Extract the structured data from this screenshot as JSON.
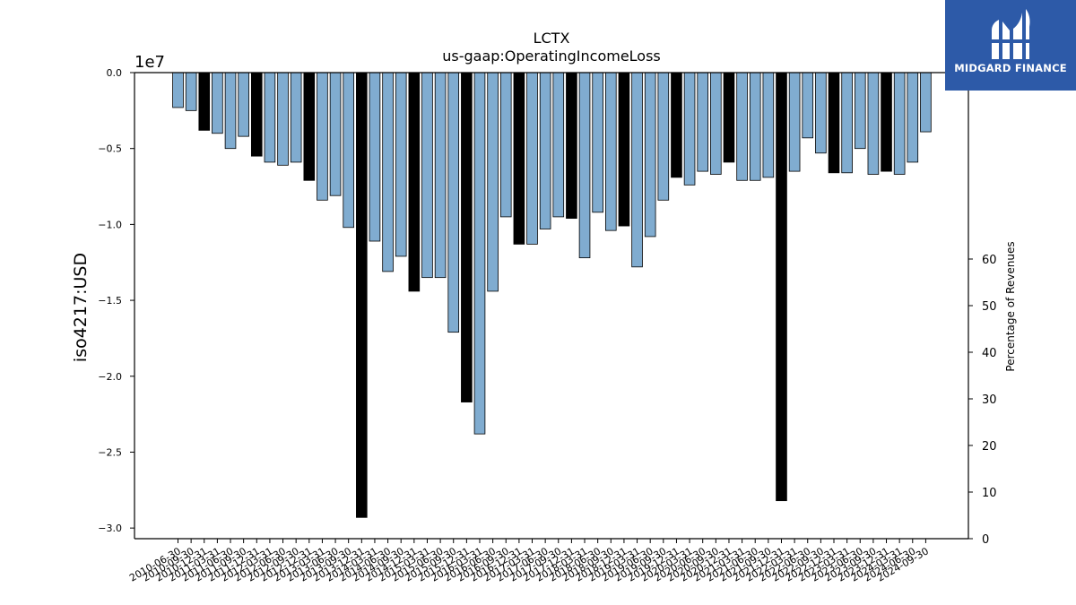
{
  "logo": {
    "name": "MIDGARD FINANCE",
    "icon": "midgard-logo-icon",
    "color": "#2d5aa8"
  },
  "chart_data": {
    "type": "bar",
    "title": "LCTX",
    "subtitle": "us-gaap:OperatingIncomeLoss",
    "ylabel": "iso4217:USD",
    "y_offset_label": "1e7",
    "y2label": "Percentage of Revenues",
    "ylim": [
      -30700000,
      0
    ],
    "y2lim": [
      0,
      100
    ],
    "yticks": [
      "0.0",
      "−0.5",
      "−1.0",
      "−1.5",
      "−2.0",
      "−2.5",
      "−3.0"
    ],
    "y2ticks": [
      "0",
      "10",
      "20",
      "30",
      "40",
      "50",
      "60"
    ],
    "grid": false,
    "colors": {
      "quarter": "#80acd0",
      "annual": "#000000",
      "edge": "#000000"
    },
    "bars": [
      {
        "label": "2010-06-30",
        "value": -2300000,
        "annual": false
      },
      {
        "label": "2010-09-30",
        "value": -2500000,
        "annual": false
      },
      {
        "label": "2010-12-31",
        "value": -3800000,
        "annual": true
      },
      {
        "label": "2011-03-31",
        "value": -4000000,
        "annual": false
      },
      {
        "label": "2011-06-30",
        "value": -5000000,
        "annual": false
      },
      {
        "label": "2011-09-30",
        "value": -4200000,
        "annual": false
      },
      {
        "label": "2011-12-31",
        "value": -5500000,
        "annual": true
      },
      {
        "label": "2012-03-31",
        "value": -5900000,
        "annual": false
      },
      {
        "label": "2012-06-30",
        "value": -6100000,
        "annual": false
      },
      {
        "label": "2012-09-30",
        "value": -5900000,
        "annual": false
      },
      {
        "label": "2012-12-31",
        "value": -7100000,
        "annual": true
      },
      {
        "label": "2013-03-31",
        "value": -8400000,
        "annual": false
      },
      {
        "label": "2013-06-30",
        "value": -8100000,
        "annual": false
      },
      {
        "label": "2013-09-30",
        "value": -10200000,
        "annual": false
      },
      {
        "label": "2013-12-31",
        "value": -29300000,
        "annual": true
      },
      {
        "label": "2014-03-31",
        "value": -11100000,
        "annual": false
      },
      {
        "label": "2014-06-30",
        "value": -13100000,
        "annual": false
      },
      {
        "label": "2014-09-30",
        "value": -12100000,
        "annual": false
      },
      {
        "label": "2014-12-31",
        "value": -14400000,
        "annual": true
      },
      {
        "label": "2015-03-31",
        "value": -13500000,
        "annual": false
      },
      {
        "label": "2015-06-30",
        "value": -13500000,
        "annual": false
      },
      {
        "label": "2015-09-30",
        "value": -17100000,
        "annual": false
      },
      {
        "label": "2015-12-31",
        "value": -21700000,
        "annual": true
      },
      {
        "label": "2016-03-31",
        "value": -23800000,
        "annual": false
      },
      {
        "label": "2016-06-30",
        "value": -14400000,
        "annual": false
      },
      {
        "label": "2016-09-30",
        "value": -9500000,
        "annual": false
      },
      {
        "label": "2016-12-31",
        "value": -11300000,
        "annual": true
      },
      {
        "label": "2017-03-31",
        "value": -11300000,
        "annual": false
      },
      {
        "label": "2017-06-30",
        "value": -10300000,
        "annual": false
      },
      {
        "label": "2017-09-30",
        "value": -9500000,
        "annual": false
      },
      {
        "label": "2017-12-31",
        "value": -9600000,
        "annual": true
      },
      {
        "label": "2018-03-31",
        "value": -12200000,
        "annual": false
      },
      {
        "label": "2018-06-30",
        "value": -9200000,
        "annual": false
      },
      {
        "label": "2018-09-30",
        "value": -10400000,
        "annual": false
      },
      {
        "label": "2018-12-31",
        "value": -10100000,
        "annual": true
      },
      {
        "label": "2019-03-31",
        "value": -12800000,
        "annual": false
      },
      {
        "label": "2019-06-30",
        "value": -10800000,
        "annual": false
      },
      {
        "label": "2019-09-30",
        "value": -8400000,
        "annual": false
      },
      {
        "label": "2019-12-31",
        "value": -6900000,
        "annual": true
      },
      {
        "label": "2020-03-31",
        "value": -7400000,
        "annual": false
      },
      {
        "label": "2020-06-30",
        "value": -6500000,
        "annual": false
      },
      {
        "label": "2020-09-30",
        "value": -6700000,
        "annual": false
      },
      {
        "label": "2020-12-31",
        "value": -5900000,
        "annual": true
      },
      {
        "label": "2021-03-31",
        "value": -7100000,
        "annual": false
      },
      {
        "label": "2021-06-30",
        "value": -7100000,
        "annual": false
      },
      {
        "label": "2021-09-30",
        "value": -6900000,
        "annual": false
      },
      {
        "label": "2021-12-31",
        "value": -28200000,
        "annual": true
      },
      {
        "label": "2022-03-31",
        "value": -6500000,
        "annual": false
      },
      {
        "label": "2022-06-30",
        "value": -4300000,
        "annual": false
      },
      {
        "label": "2022-09-30",
        "value": -5300000,
        "annual": false
      },
      {
        "label": "2022-12-31",
        "value": -6600000,
        "annual": true
      },
      {
        "label": "2023-03-31",
        "value": -6600000,
        "annual": false
      },
      {
        "label": "2023-06-30",
        "value": -5000000,
        "annual": false
      },
      {
        "label": "2023-09-30",
        "value": -6700000,
        "annual": false
      },
      {
        "label": "2023-12-31",
        "value": -6500000,
        "annual": true
      },
      {
        "label": "2024-03-31",
        "value": -6700000,
        "annual": false
      },
      {
        "label": "2024-06-30",
        "value": -5900000,
        "annual": false
      },
      {
        "label": "2024-09-30",
        "value": -3900000,
        "annual": false
      }
    ]
  }
}
